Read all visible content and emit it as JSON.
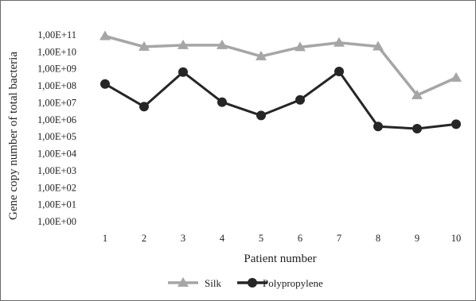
{
  "chart_data": {
    "type": "line",
    "y_scale": "log",
    "grid": "none",
    "legend_position": "bottom",
    "categories": [
      "1",
      "2",
      "3",
      "4",
      "5",
      "6",
      "7",
      "8",
      "9",
      "10"
    ],
    "xlabel": "Patient number",
    "ylabel": "Gene copy number of total bacteria",
    "ylim": [
      "1,00E+00",
      "1,00E+11"
    ],
    "y_ticks": [
      "1,00E+11",
      "1,00E+10",
      "1,00E+09",
      "1,00E+08",
      "1,00E+07",
      "1,00E+06",
      "1,00E+05",
      "1,00E+04",
      "1,00E+03",
      "1,00E+02",
      "1,00E+01",
      "1,00E+00"
    ],
    "series": [
      {
        "name": "Silk",
        "color": "#a6a6a6",
        "marker": "triangle",
        "values": [
          85000000000.0,
          20000000000.0,
          25000000000.0,
          25000000000.0,
          5500000000.0,
          19000000000.0,
          35000000000.0,
          21000000000.0,
          28000000.0,
          300000000.0
        ]
      },
      {
        "name": "Polypropylene",
        "color": "#262626",
        "marker": "circle",
        "values": [
          130000000.0,
          6000000.0,
          650000000.0,
          11000000.0,
          1800000.0,
          15000000.0,
          700000000.0,
          400000.0,
          300000.0,
          550000.0
        ]
      }
    ]
  }
}
